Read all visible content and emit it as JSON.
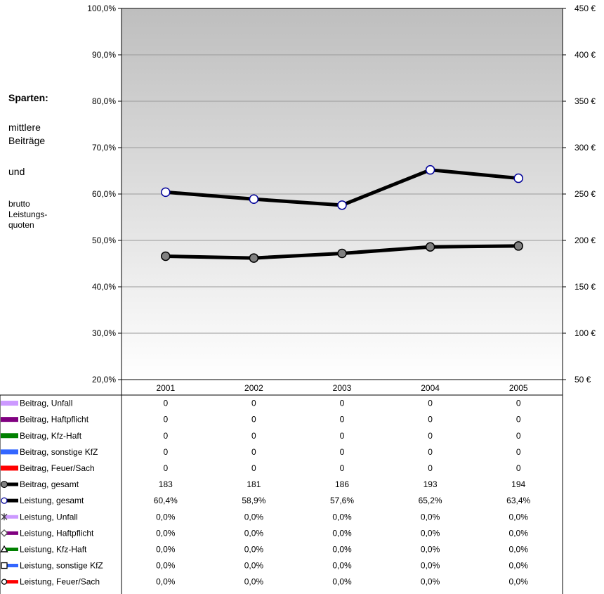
{
  "sidebar": {
    "heading": "Sparten:",
    "line1": "mittlere",
    "line2": "Beiträge",
    "line3": "und",
    "line4": "brutto",
    "line5": "Leistungs-",
    "line6": "quoten"
  },
  "chart_data": {
    "type": "line",
    "categories": [
      "2001",
      "2002",
      "2003",
      "2004",
      "2005"
    ],
    "y_left": {
      "ticks": [
        "100,0%",
        "90,0%",
        "80,0%",
        "70,0%",
        "60,0%",
        "50,0%",
        "40,0%",
        "30,0%",
        "20,0%"
      ],
      "range": [
        20,
        100
      ],
      "unit": "%"
    },
    "y_right": {
      "ticks": [
        "450 €",
        "400 €",
        "350 €",
        "300 €",
        "250 €",
        "200 €",
        "150 €",
        "100 €",
        "50 €"
      ],
      "range": [
        50,
        450
      ],
      "unit": "€"
    },
    "grid": true,
    "plot_background": "gradient gray to white",
    "series": [
      {
        "name": "Beitrag, Unfall",
        "axis": "right",
        "color": "#cc99ff",
        "marker": "none",
        "values": [
          0,
          0,
          0,
          0,
          0
        ],
        "labels": [
          "0",
          "0",
          "0",
          "0",
          "0"
        ],
        "plotted": false
      },
      {
        "name": "Beitrag, Haftpflicht",
        "axis": "right",
        "color": "#800080",
        "marker": "none",
        "values": [
          0,
          0,
          0,
          0,
          0
        ],
        "labels": [
          "0",
          "0",
          "0",
          "0",
          "0"
        ],
        "plotted": false
      },
      {
        "name": "Beitrag, Kfz-Haft",
        "axis": "right",
        "color": "#008000",
        "marker": "none",
        "values": [
          0,
          0,
          0,
          0,
          0
        ],
        "labels": [
          "0",
          "0",
          "0",
          "0",
          "0"
        ],
        "plotted": false
      },
      {
        "name": "Beitrag, sonstige KfZ",
        "axis": "right",
        "color": "#3366ff",
        "marker": "none",
        "values": [
          0,
          0,
          0,
          0,
          0
        ],
        "labels": [
          "0",
          "0",
          "0",
          "0",
          "0"
        ],
        "plotted": false
      },
      {
        "name": "Beitrag, Feuer/Sach",
        "axis": "right",
        "color": "#ff0000",
        "marker": "none",
        "values": [
          0,
          0,
          0,
          0,
          0
        ],
        "labels": [
          "0",
          "0",
          "0",
          "0",
          "0"
        ],
        "plotted": false
      },
      {
        "name": "Beitrag, gesamt",
        "axis": "right",
        "color": "#000000",
        "marker": "circle-gray",
        "values": [
          183,
          181,
          186,
          193,
          194
        ],
        "labels": [
          "183",
          "181",
          "186",
          "193",
          "194"
        ],
        "plotted": true
      },
      {
        "name": "Leistung, gesamt",
        "axis": "left",
        "color": "#000000",
        "marker": "circle-white",
        "values": [
          60.4,
          58.9,
          57.6,
          65.2,
          63.4
        ],
        "labels": [
          "60,4%",
          "58,9%",
          "57,6%",
          "65,2%",
          "63,4%"
        ],
        "plotted": true
      },
      {
        "name": "Leistung, Unfall",
        "axis": "left",
        "color": "#cc99ff",
        "marker": "star",
        "values": [
          0,
          0,
          0,
          0,
          0
        ],
        "labels": [
          "0,0%",
          "0,0%",
          "0,0%",
          "0,0%",
          "0,0%"
        ],
        "plotted": false
      },
      {
        "name": "Leistung, Haftpflicht",
        "axis": "left",
        "color": "#800080",
        "marker": "diamond",
        "values": [
          0,
          0,
          0,
          0,
          0
        ],
        "labels": [
          "0,0%",
          "0,0%",
          "0,0%",
          "0,0%",
          "0,0%"
        ],
        "plotted": false
      },
      {
        "name": "Leistung, Kfz-Haft",
        "axis": "left",
        "color": "#008000",
        "marker": "triangle",
        "values": [
          0,
          0,
          0,
          0,
          0
        ],
        "labels": [
          "0,0%",
          "0,0%",
          "0,0%",
          "0,0%",
          "0,0%"
        ],
        "plotted": false
      },
      {
        "name": "Leistung, sonstige KfZ",
        "axis": "left",
        "color": "#3366ff",
        "marker": "square",
        "values": [
          0,
          0,
          0,
          0,
          0
        ],
        "labels": [
          "0,0%",
          "0,0%",
          "0,0%",
          "0,0%",
          "0,0%"
        ],
        "plotted": false
      },
      {
        "name": "Leistung, Feuer/Sach",
        "axis": "left",
        "color": "#ff0000",
        "marker": "circle",
        "values": [
          0,
          0,
          0,
          0,
          0
        ],
        "labels": [
          "0,0%",
          "0,0%",
          "0,0%",
          "0,0%",
          "0,0%"
        ],
        "plotted": false
      }
    ]
  }
}
